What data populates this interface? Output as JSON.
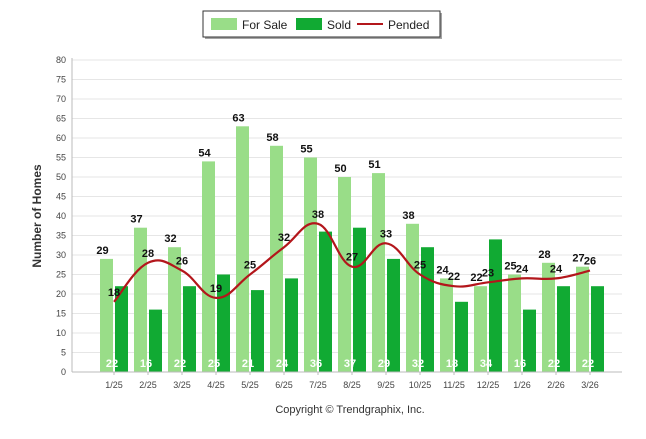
{
  "chart_data": {
    "type": "bar",
    "title": "",
    "xlabel": "",
    "ylabel": "Number of Homes",
    "ylim": [
      0,
      80
    ],
    "ytick_step": 5,
    "grid": true,
    "legend_position": "top-center",
    "categories": [
      "1/25",
      "2/25",
      "3/25",
      "4/25",
      "5/25",
      "6/25",
      "7/25",
      "8/25",
      "9/25",
      "10/25",
      "11/25",
      "12/25",
      "1/26",
      "2/26",
      "3/26"
    ],
    "series": [
      {
        "name": "For Sale",
        "type": "bar",
        "color": "#99dd88",
        "values": [
          29,
          37,
          32,
          54,
          63,
          58,
          55,
          50,
          51,
          38,
          24,
          22,
          25,
          28,
          27
        ]
      },
      {
        "name": "Sold",
        "type": "bar",
        "color": "#11aa33",
        "values": [
          22,
          16,
          22,
          25,
          21,
          24,
          36,
          37,
          29,
          32,
          18,
          34,
          16,
          22,
          22
        ]
      },
      {
        "name": "Pended",
        "type": "line",
        "color": "#b3161b",
        "values": [
          18,
          28,
          26,
          19,
          25,
          32,
          38,
          27,
          33,
          25,
          22,
          23,
          24,
          24,
          26
        ]
      }
    ],
    "footer": "Copyright © Trendgraphix, Inc."
  }
}
